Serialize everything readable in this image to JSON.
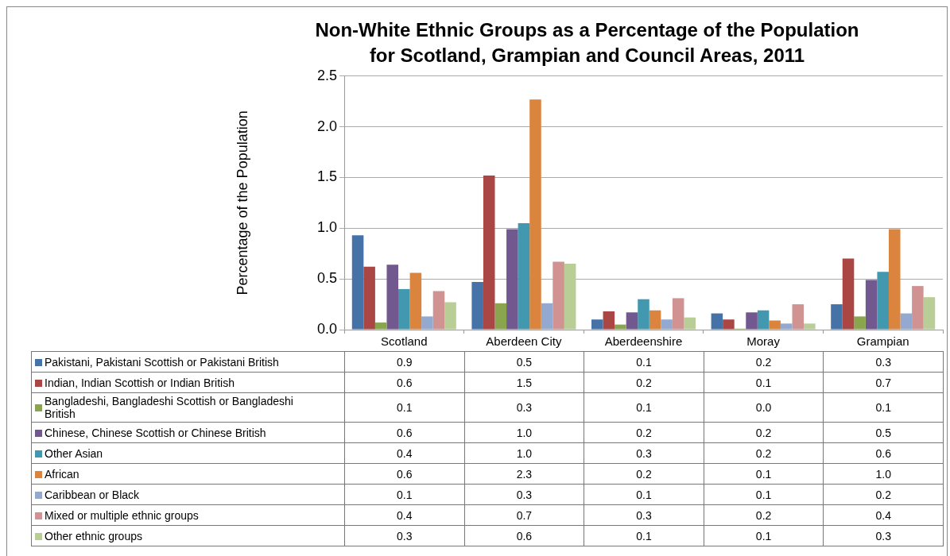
{
  "chart_data": {
    "type": "bar",
    "title": "Non-White Ethnic Groups as a Percentage of the Population\nfor Scotland, Grampian and Council Areas, 2011",
    "ylabel": "Percentage of the Population",
    "categories": [
      "Scotland",
      "Aberdeen City",
      "Aberdeenshire",
      "Moray",
      "Grampian"
    ],
    "series": [
      {
        "name": "Pakistani, Pakistani Scottish or Pakistani British",
        "color": "#4572a7",
        "values": [
          0.93,
          0.47,
          0.1,
          0.16,
          0.25
        ],
        "value_labels": [
          "0.9",
          "0.5",
          "0.1",
          "0.2",
          "0.3"
        ]
      },
      {
        "name": "Indian, Indian Scottish or Indian British",
        "color": "#aa4643",
        "values": [
          0.62,
          1.52,
          0.18,
          0.1,
          0.7
        ],
        "value_labels": [
          "0.6",
          "1.5",
          "0.2",
          "0.1",
          "0.7"
        ]
      },
      {
        "name": "Bangladeshi, Bangladeshi Scottish or Bangladeshi British",
        "color": "#89a54e",
        "values": [
          0.07,
          0.26,
          0.05,
          0.01,
          0.13
        ],
        "value_labels": [
          "0.1",
          "0.3",
          "0.1",
          "0.0",
          "0.1"
        ]
      },
      {
        "name": "Chinese, Chinese Scottish or Chinese British",
        "color": "#71588f",
        "values": [
          0.64,
          0.99,
          0.17,
          0.17,
          0.49
        ],
        "value_labels": [
          "0.6",
          "1.0",
          "0.2",
          "0.2",
          "0.5"
        ]
      },
      {
        "name": "Other Asian",
        "color": "#4198af",
        "values": [
          0.4,
          1.05,
          0.3,
          0.19,
          0.57
        ],
        "value_labels": [
          "0.4",
          "1.0",
          "0.3",
          "0.2",
          "0.6"
        ]
      },
      {
        "name": "African",
        "color": "#db843d",
        "values": [
          0.56,
          2.27,
          0.19,
          0.09,
          0.99
        ],
        "value_labels": [
          "0.6",
          "2.3",
          "0.2",
          "0.1",
          "1.0"
        ]
      },
      {
        "name": "Caribbean or Black",
        "color": "#93a9cf",
        "values": [
          0.13,
          0.26,
          0.1,
          0.06,
          0.16
        ],
        "value_labels": [
          "0.1",
          "0.3",
          "0.1",
          "0.1",
          "0.2"
        ]
      },
      {
        "name": "Mixed or multiple ethnic groups",
        "color": "#d19392",
        "values": [
          0.38,
          0.67,
          0.31,
          0.25,
          0.43
        ],
        "value_labels": [
          "0.4",
          "0.7",
          "0.3",
          "0.2",
          "0.4"
        ]
      },
      {
        "name": "Other ethnic groups",
        "color": "#b9cd96",
        "values": [
          0.27,
          0.65,
          0.12,
          0.06,
          0.32
        ],
        "value_labels": [
          "0.3",
          "0.6",
          "0.1",
          "0.1",
          "0.3"
        ]
      }
    ],
    "ylim": [
      0,
      2.5
    ],
    "yticks": [
      {
        "value": 0,
        "label": "0.0"
      },
      {
        "value": 0.5,
        "label": "0.5"
      },
      {
        "value": 1,
        "label": "1.0"
      },
      {
        "value": 1.5,
        "label": "1.5"
      },
      {
        "value": 2,
        "label": "2.0"
      },
      {
        "value": 2.5,
        "label": "2.5"
      }
    ],
    "grid": "y",
    "legend": "bottom"
  }
}
